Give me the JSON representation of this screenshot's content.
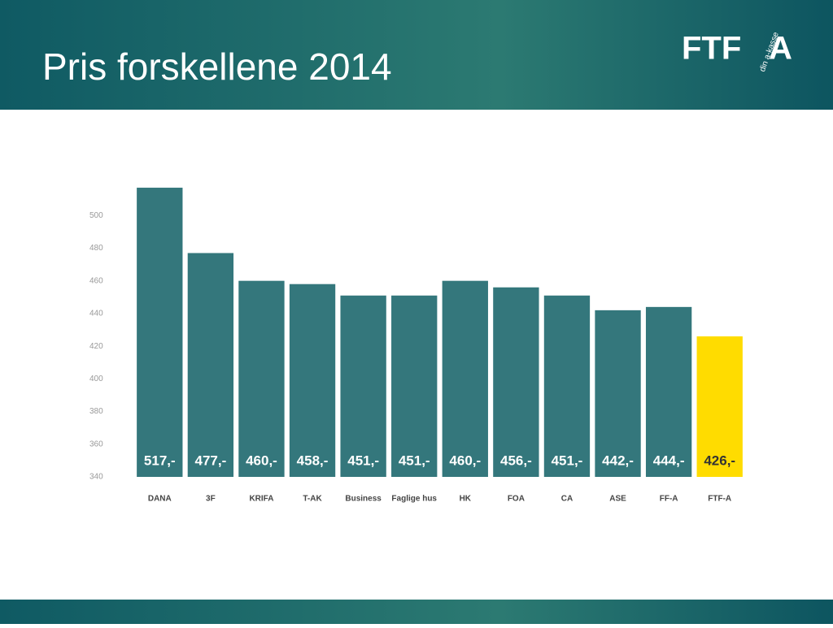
{
  "logo": {
    "text": "FTF",
    "letter": "A",
    "tagline": "din a-kasse"
  },
  "chart_data": {
    "type": "bar",
    "title": "Pris forskellene 2014",
    "categories": [
      "DANA",
      "3F",
      "KRIFA",
      "T-AK",
      "Business",
      "Faglige hus",
      "HK",
      "FOA",
      "CA",
      "ASE",
      "FF-A",
      "FTF-A"
    ],
    "values": [
      517,
      477,
      460,
      458,
      451,
      451,
      460,
      456,
      451,
      442,
      444,
      426
    ],
    "value_labels": [
      "517,-",
      "477,-",
      "460,-",
      "458,-",
      "451,-",
      "451,-",
      "460,-",
      "456,-",
      "451,-",
      "442,-",
      "444,-",
      "426,-"
    ],
    "colors": [
      "#34777c",
      "#34777c",
      "#34777c",
      "#34777c",
      "#34777c",
      "#34777c",
      "#34777c",
      "#34777c",
      "#34777c",
      "#34777c",
      "#34777c",
      "#ffdc00"
    ],
    "ylim": [
      340,
      520
    ],
    "yticks": [
      340,
      360,
      380,
      400,
      420,
      440,
      460,
      480,
      500
    ],
    "grid": false
  }
}
